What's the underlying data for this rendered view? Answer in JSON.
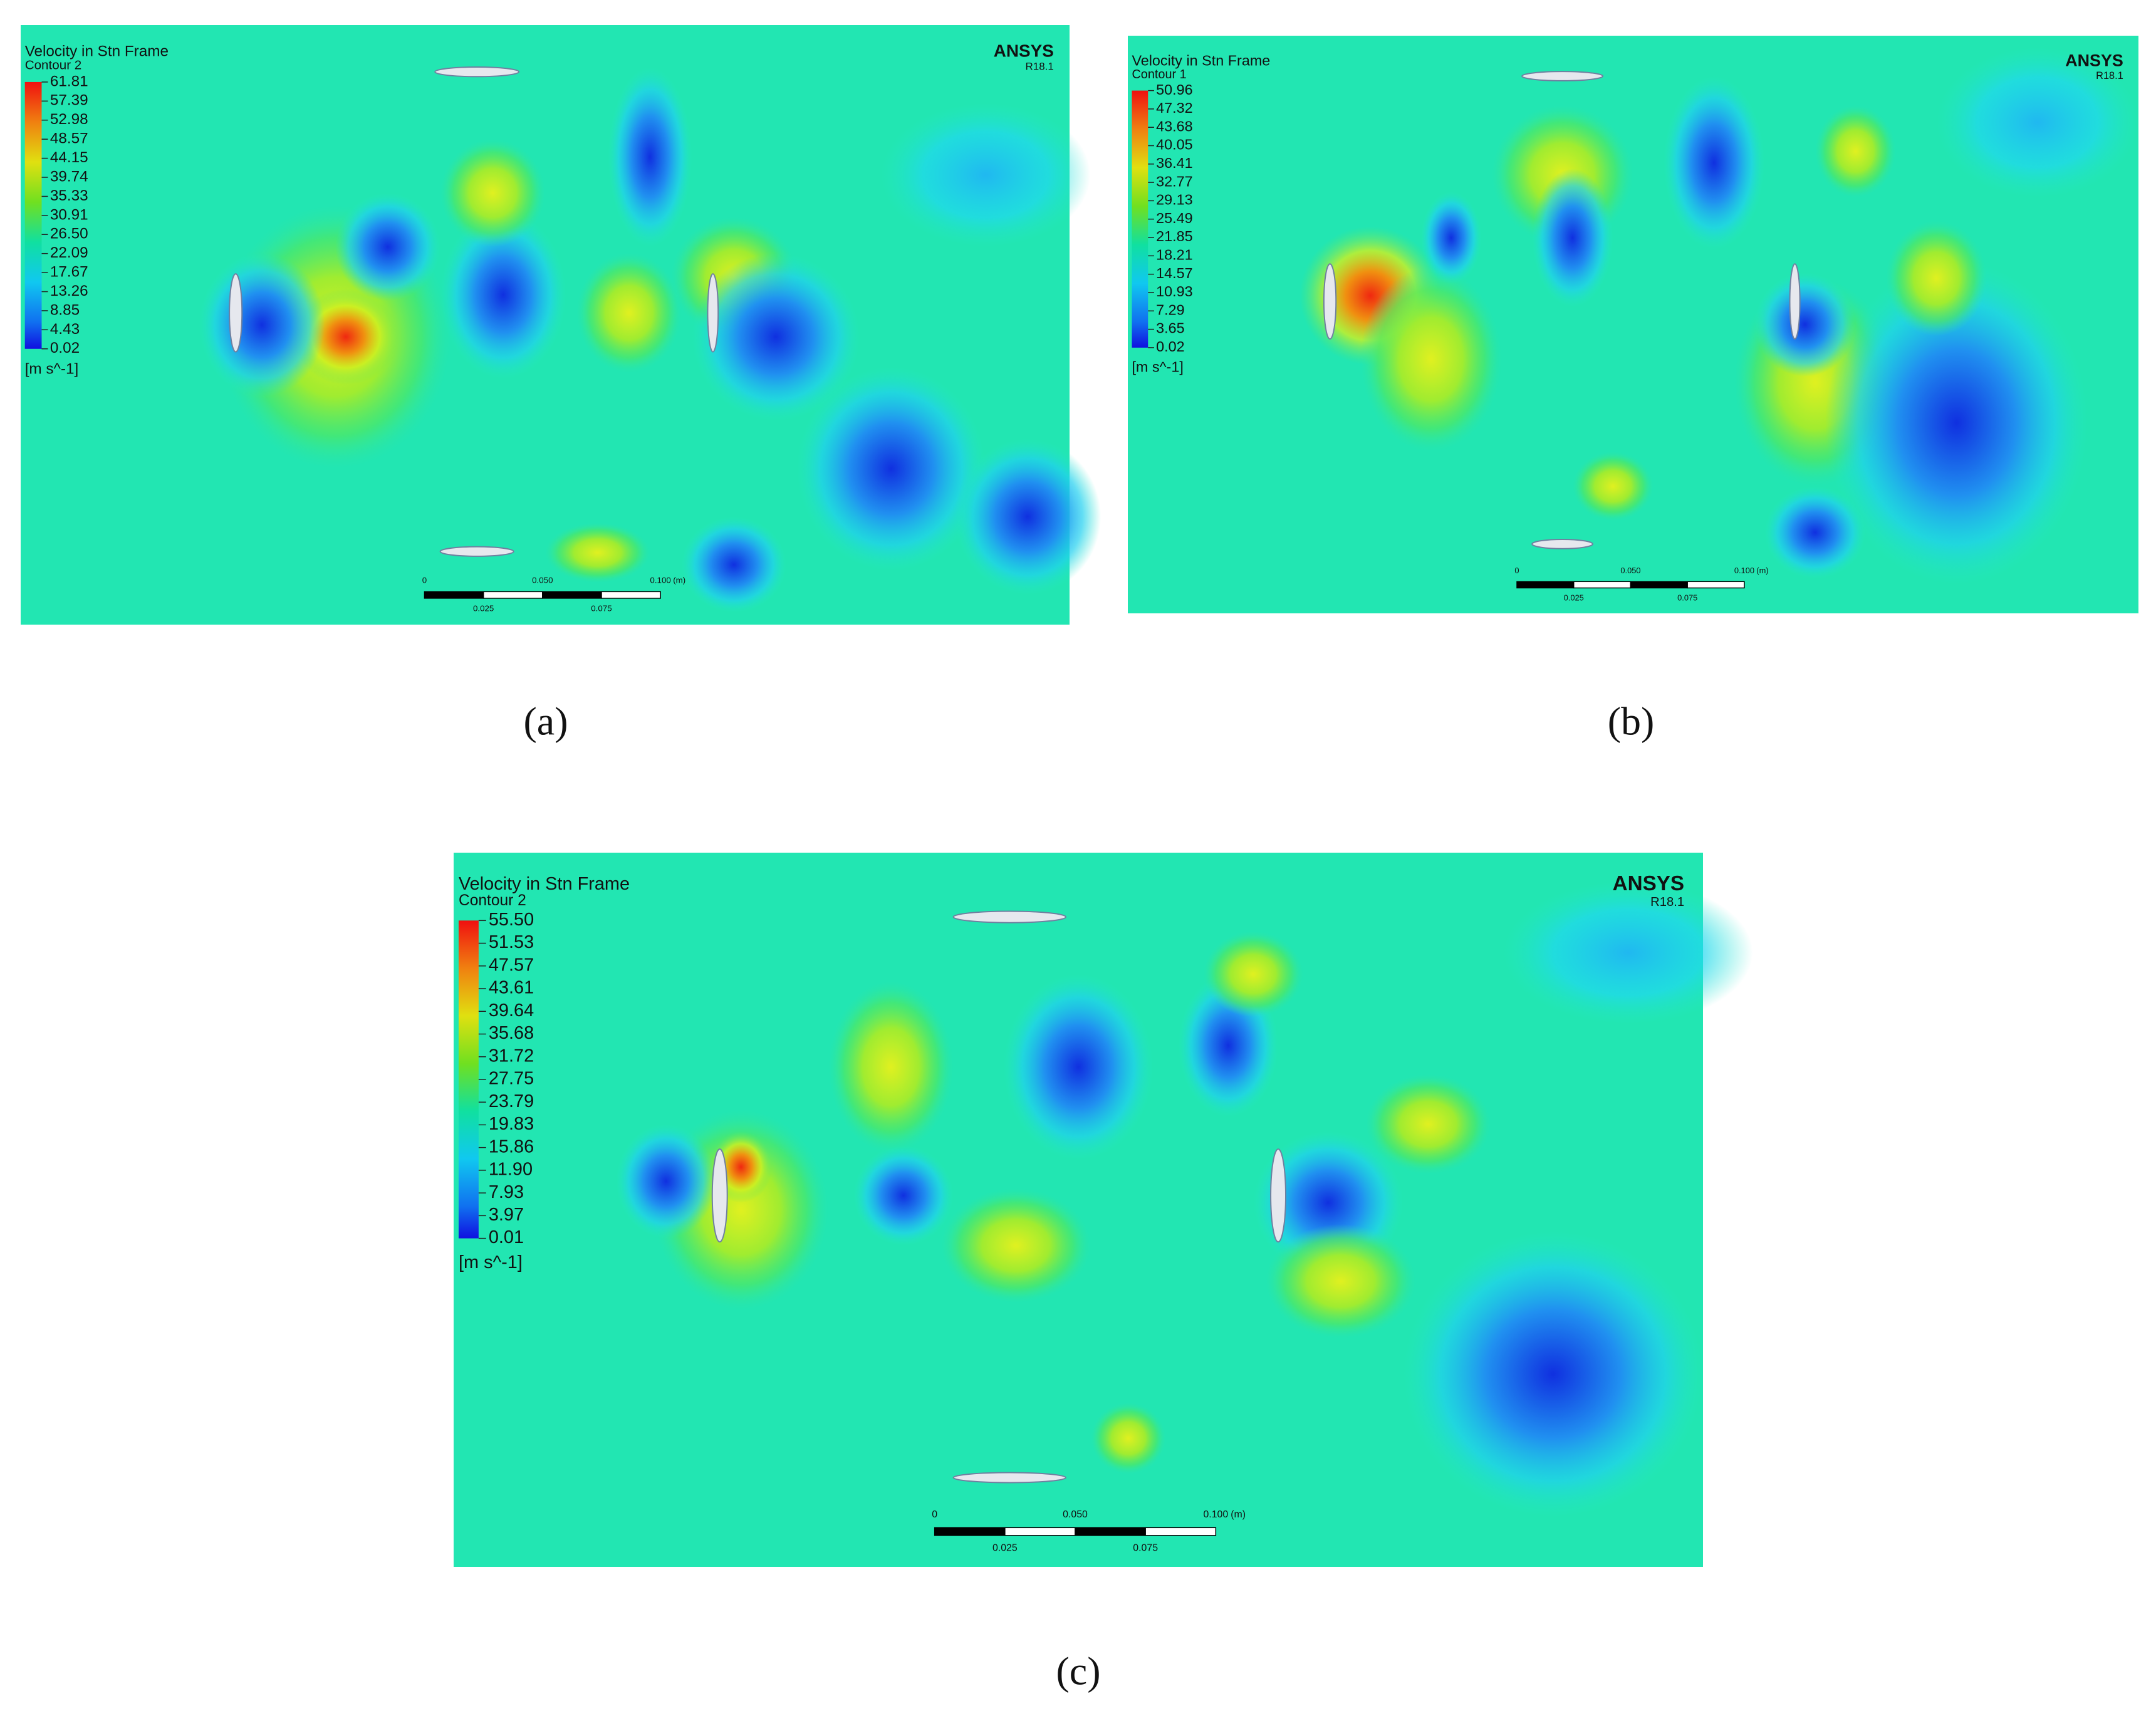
{
  "panels": [
    {
      "caption": "(a)",
      "title": "Velocity in Stn Frame",
      "subtitle": "Contour 2",
      "legend": [
        "61.81",
        "57.39",
        "52.98",
        "48.57",
        "44.15",
        "39.74",
        "35.33",
        "30.91",
        "26.50",
        "22.09",
        "17.67",
        "13.26",
        "8.85",
        "4.43",
        "0.02"
      ],
      "unit": "[m s^-1]",
      "brand": "ANSYS",
      "version": "R18.1",
      "scale_top": [
        "0",
        "0.050",
        "0.100",
        "(m)"
      ],
      "scale_bottom": [
        "0.025",
        "0.075"
      ]
    },
    {
      "caption": "(b)",
      "title": "Velocity in Stn Frame",
      "subtitle": "Contour 1",
      "legend": [
        "50.96",
        "47.32",
        "43.68",
        "40.05",
        "36.41",
        "32.77",
        "29.13",
        "25.49",
        "21.85",
        "18.21",
        "14.57",
        "10.93",
        "7.29",
        "3.65",
        "0.02"
      ],
      "unit": "[m s^-1]",
      "brand": "ANSYS",
      "version": "R18.1",
      "scale_top": [
        "0",
        "0.050",
        "0.100",
        "(m)"
      ],
      "scale_bottom": [
        "0.025",
        "0.075"
      ]
    },
    {
      "caption": "(c)",
      "title": "Velocity in Stn Frame",
      "subtitle": "Contour 2",
      "legend": [
        "55.50",
        "51.53",
        "47.57",
        "43.61",
        "39.64",
        "35.68",
        "31.72",
        "27.75",
        "23.79",
        "19.83",
        "15.86",
        "11.90",
        "7.93",
        "3.97",
        "0.01"
      ],
      "unit": "[m s^-1]",
      "brand": "ANSYS",
      "version": "R18.1",
      "scale_top": [
        "0",
        "0.050",
        "0.100",
        "(m)"
      ],
      "scale_bottom": [
        "0.025",
        "0.075"
      ]
    }
  ]
}
